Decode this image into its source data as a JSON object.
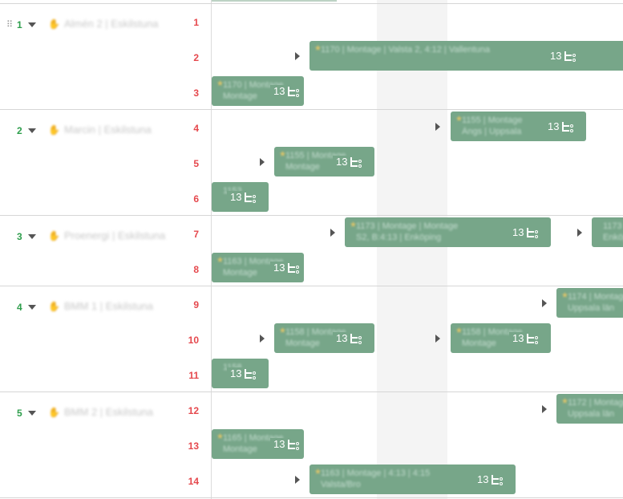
{
  "groups": [
    {
      "number": "1",
      "name": "Almén 2 | Eskilstuna"
    },
    {
      "number": "2",
      "name": "Marcin | Eskilstuna"
    },
    {
      "number": "3",
      "name": "Proenergi | Eskilstuna"
    },
    {
      "number": "4",
      "name": "BMM 1 | Eskilstuna"
    },
    {
      "number": "5",
      "name": "BMM 2 | Eskilstuna"
    }
  ],
  "rows": [
    "1",
    "2",
    "3",
    "4",
    "5",
    "6",
    "7",
    "8",
    "9",
    "10",
    "11",
    "12",
    "13",
    "14"
  ],
  "bars": [
    {
      "id": "b1",
      "line1": "1170 | Montage | Valsta 2, 4:12 | Vallentuna",
      "line2": "",
      "count": "13"
    },
    {
      "id": "b2",
      "line1": "1170 | Montage",
      "line2": "Montage",
      "count": "13"
    },
    {
      "id": "b3",
      "line1": "1155 | Montage",
      "line2": "Ängs | Uppsala",
      "count": "13"
    },
    {
      "id": "b4",
      "line1": "1155 | Montage",
      "line2": "Montage",
      "count": "13"
    },
    {
      "id": "b5",
      "line1": "1153",
      "line2": "",
      "count": "13"
    },
    {
      "id": "b6",
      "line1": "1173 | Montage | Montage",
      "line2": "S2, B:4:13 | Enköping",
      "count": "13"
    },
    {
      "id": "b7",
      "line1": "1173",
      "line2": "Enköping",
      "count": "13"
    },
    {
      "id": "b8",
      "line1": "1163 | Montage",
      "line2": "Montage",
      "count": "13"
    },
    {
      "id": "b9",
      "line1": "1174 | Montage",
      "line2": "Uppsala län",
      "count": "13"
    },
    {
      "id": "b10",
      "line1": "1158 | Montage",
      "line2": "Montage",
      "count": "13"
    },
    {
      "id": "b11",
      "line1": "1158 | Montage",
      "line2": "Montage",
      "count": "13"
    },
    {
      "id": "b12",
      "line1": "1158",
      "line2": "",
      "count": "13"
    },
    {
      "id": "b13",
      "line1": "1172 | Montage",
      "line2": "Uppsala län",
      "count": "13"
    },
    {
      "id": "b14",
      "line1": "1165 | Montage",
      "line2": "Montage",
      "count": "13"
    },
    {
      "id": "b15",
      "line1": "1163 | Montage | 4:13 | 4:15",
      "line2": "Valsta/Bro",
      "count": "13"
    }
  ]
}
